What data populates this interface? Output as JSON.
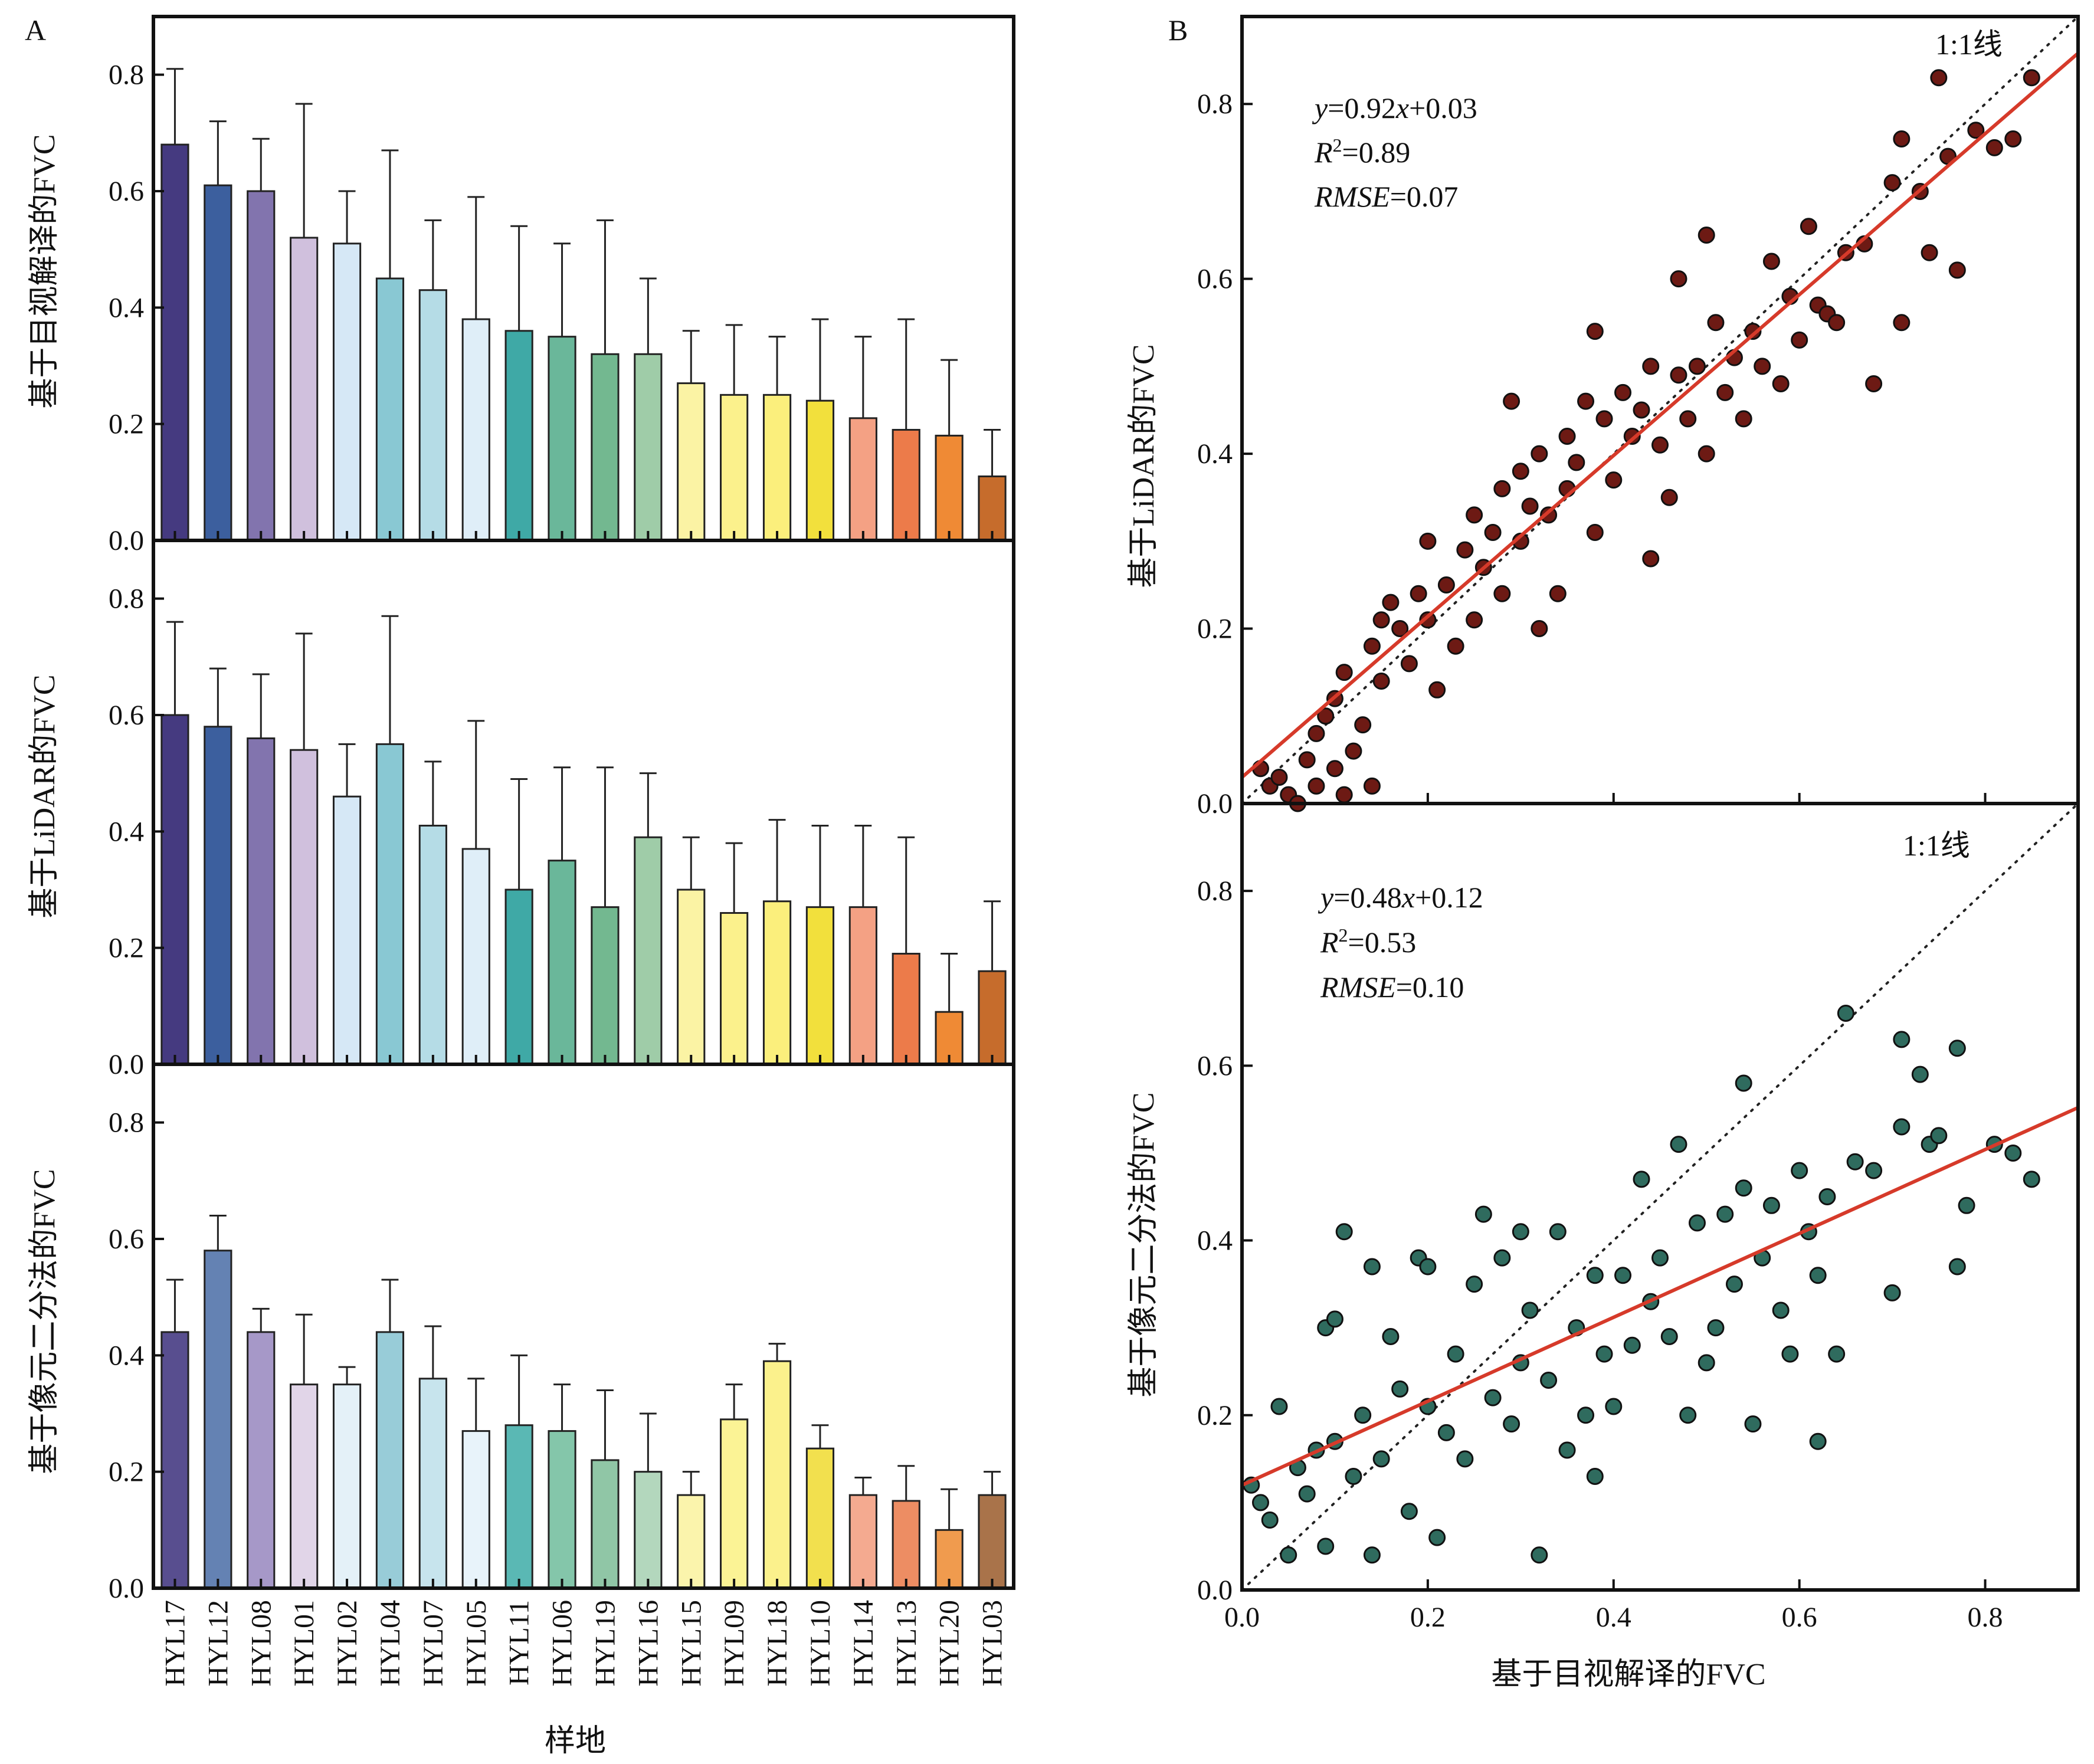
{
  "panel_a": {
    "letter": "A",
    "xlabel": "样地",
    "categories": [
      "HYL17",
      "HYL12",
      "HYL08",
      "HYL01",
      "HYL02",
      "HYL04",
      "HYL07",
      "HYL05",
      "HYL11",
      "HYL06",
      "HYL19",
      "HYL16",
      "HYL15",
      "HYL09",
      "HYL18",
      "HYL10",
      "HYL14",
      "HYL13",
      "HYL20",
      "HYL03"
    ]
  },
  "panel_b": {
    "letter": "B",
    "xlabel": "基于目视解译的FVC",
    "top": {
      "ylabel": "基于LiDAR的FVC",
      "one_to_one_label": "1:1线",
      "eq_y": "y",
      "eq_rest1": "=0.92",
      "eq_x": "x",
      "eq_rest2": "+0.03",
      "r2_sym": "R",
      "r2_sup": "2",
      "r2_val": "=0.89",
      "rmse_sym": "RMSE",
      "rmse_val": "=0.07"
    },
    "bottom": {
      "ylabel": "基于像元二分法的FVC",
      "one_to_one_label": "1:1线",
      "eq_y": "y",
      "eq_rest1": "=0.48",
      "eq_x": "x",
      "eq_rest2": "+0.12",
      "r2_sym": "R",
      "r2_sup": "2",
      "r2_val": "=0.53",
      "rmse_sym": "RMSE",
      "rmse_val": "=0.10"
    }
  },
  "colors": {
    "bars_a": [
      "#453a80",
      "#3c5f9e",
      "#8274ae",
      "#d0c0dd",
      "#d6e8f6",
      "#89c8d3",
      "#b5dce6",
      "#dfeef8",
      "#3fa9a6",
      "#6ab79a",
      "#73b890",
      "#9fcca8",
      "#fbf3a4",
      "#fbf18c",
      "#fbef7c",
      "#f2e03c",
      "#f4a184",
      "#ec7b4a",
      "#ef8a35",
      "#c66c2c"
    ],
    "bars_c": [
      "#584e8f",
      "#6482b3",
      "#a698c8",
      "#e1d5e8",
      "#e4f1f8",
      "#98ccd8",
      "#c7e4ed",
      "#e8f3fa",
      "#5ab8b4",
      "#84c6aa",
      "#90c6a6",
      "#b3d7bd",
      "#fbf4ac",
      "#fbf395",
      "#fbf18c",
      "#f2e04e",
      "#f4aa90",
      "#ed8d63",
      "#f09b4e",
      "#a9734a"
    ],
    "lidar_points": "#6d1a14",
    "dichotomy_points": "#2f6b5e",
    "fit_line": "#d63a2a"
  },
  "chart_data": [
    {
      "type": "bar",
      "title": "",
      "ylabel": "基于目视解译的FVC",
      "xlabel": "样地",
      "ylim": [
        0,
        0.9
      ],
      "yticks": [
        0.0,
        0.2,
        0.4,
        0.6,
        0.8
      ],
      "categories": [
        "HYL17",
        "HYL12",
        "HYL08",
        "HYL01",
        "HYL02",
        "HYL04",
        "HYL07",
        "HYL05",
        "HYL11",
        "HYL06",
        "HYL19",
        "HYL16",
        "HYL15",
        "HYL09",
        "HYL18",
        "HYL10",
        "HYL14",
        "HYL13",
        "HYL20",
        "HYL03"
      ],
      "values": [
        0.68,
        0.61,
        0.6,
        0.52,
        0.51,
        0.45,
        0.43,
        0.38,
        0.36,
        0.35,
        0.32,
        0.32,
        0.27,
        0.25,
        0.25,
        0.24,
        0.21,
        0.19,
        0.18,
        0.11
      ],
      "error_upper": [
        0.81,
        0.72,
        0.69,
        0.75,
        0.6,
        0.67,
        0.55,
        0.59,
        0.54,
        0.51,
        0.55,
        0.45,
        0.36,
        0.37,
        0.35,
        0.38,
        0.35,
        0.38,
        0.31,
        0.19
      ]
    },
    {
      "type": "bar",
      "title": "",
      "ylabel": "基于LiDAR的FVC",
      "ylim": [
        0,
        0.9
      ],
      "yticks": [
        0.0,
        0.2,
        0.4,
        0.6,
        0.8
      ],
      "categories": [
        "HYL17",
        "HYL12",
        "HYL08",
        "HYL01",
        "HYL02",
        "HYL04",
        "HYL07",
        "HYL05",
        "HYL11",
        "HYL06",
        "HYL19",
        "HYL16",
        "HYL15",
        "HYL09",
        "HYL18",
        "HYL10",
        "HYL14",
        "HYL13",
        "HYL20",
        "HYL03"
      ],
      "values": [
        0.6,
        0.58,
        0.56,
        0.54,
        0.46,
        0.55,
        0.41,
        0.37,
        0.3,
        0.35,
        0.27,
        0.39,
        0.3,
        0.26,
        0.28,
        0.27,
        0.27,
        0.19,
        0.09,
        0.16
      ],
      "error_upper": [
        0.76,
        0.68,
        0.67,
        0.74,
        0.55,
        0.77,
        0.52,
        0.59,
        0.49,
        0.51,
        0.51,
        0.5,
        0.39,
        0.38,
        0.42,
        0.41,
        0.41,
        0.39,
        0.19,
        0.28
      ]
    },
    {
      "type": "bar",
      "title": "",
      "ylabel": "基于像元二分法的FVC",
      "ylim": [
        0,
        0.9
      ],
      "yticks": [
        0.0,
        0.2,
        0.4,
        0.6,
        0.8
      ],
      "categories": [
        "HYL17",
        "HYL12",
        "HYL08",
        "HYL01",
        "HYL02",
        "HYL04",
        "HYL07",
        "HYL05",
        "HYL11",
        "HYL06",
        "HYL19",
        "HYL16",
        "HYL15",
        "HYL09",
        "HYL18",
        "HYL10",
        "HYL14",
        "HYL13",
        "HYL20",
        "HYL03"
      ],
      "values": [
        0.44,
        0.58,
        0.44,
        0.35,
        0.35,
        0.44,
        0.36,
        0.27,
        0.28,
        0.27,
        0.22,
        0.2,
        0.16,
        0.29,
        0.39,
        0.24,
        0.16,
        0.15,
        0.1,
        0.16
      ],
      "error_upper": [
        0.53,
        0.64,
        0.48,
        0.47,
        0.38,
        0.53,
        0.45,
        0.36,
        0.4,
        0.35,
        0.34,
        0.3,
        0.2,
        0.35,
        0.42,
        0.28,
        0.19,
        0.21,
        0.17,
        0.2
      ]
    },
    {
      "type": "scatter",
      "title": "",
      "xlabel": "基于目视解译的FVC",
      "ylabel": "基于LiDAR的FVC",
      "xlim": [
        0,
        0.9
      ],
      "ylim": [
        0,
        0.9
      ],
      "xticks": [
        0.0,
        0.2,
        0.4,
        0.6,
        0.8
      ],
      "yticks": [
        0.0,
        0.2,
        0.4,
        0.6,
        0.8
      ],
      "one_to_one": true,
      "fit": {
        "slope": 0.92,
        "intercept": 0.03,
        "r2": 0.89,
        "rmse": 0.07
      },
      "points": [
        [
          0.02,
          0.04
        ],
        [
          0.03,
          0.02
        ],
        [
          0.04,
          0.03
        ],
        [
          0.05,
          0.01
        ],
        [
          0.06,
          0.0
        ],
        [
          0.07,
          0.05
        ],
        [
          0.08,
          0.08
        ],
        [
          0.08,
          0.02
        ],
        [
          0.09,
          0.1
        ],
        [
          0.1,
          0.12
        ],
        [
          0.1,
          0.04
        ],
        [
          0.11,
          0.01
        ],
        [
          0.11,
          0.15
        ],
        [
          0.12,
          0.06
        ],
        [
          0.13,
          0.09
        ],
        [
          0.14,
          0.02
        ],
        [
          0.14,
          0.18
        ],
        [
          0.15,
          0.21
        ],
        [
          0.15,
          0.14
        ],
        [
          0.16,
          0.23
        ],
        [
          0.17,
          0.2
        ],
        [
          0.18,
          0.16
        ],
        [
          0.19,
          0.24
        ],
        [
          0.2,
          0.21
        ],
        [
          0.2,
          0.3
        ],
        [
          0.21,
          0.13
        ],
        [
          0.22,
          0.25
        ],
        [
          0.23,
          0.18
        ],
        [
          0.24,
          0.29
        ],
        [
          0.25,
          0.33
        ],
        [
          0.25,
          0.21
        ],
        [
          0.26,
          0.27
        ],
        [
          0.27,
          0.31
        ],
        [
          0.28,
          0.24
        ],
        [
          0.28,
          0.36
        ],
        [
          0.29,
          0.46
        ],
        [
          0.3,
          0.3
        ],
        [
          0.3,
          0.38
        ],
        [
          0.31,
          0.34
        ],
        [
          0.32,
          0.4
        ],
        [
          0.32,
          0.2
        ],
        [
          0.33,
          0.33
        ],
        [
          0.34,
          0.24
        ],
        [
          0.35,
          0.36
        ],
        [
          0.35,
          0.42
        ],
        [
          0.36,
          0.39
        ],
        [
          0.37,
          0.46
        ],
        [
          0.38,
          0.31
        ],
        [
          0.38,
          0.54
        ],
        [
          0.39,
          0.44
        ],
        [
          0.4,
          0.37
        ],
        [
          0.41,
          0.47
        ],
        [
          0.42,
          0.42
        ],
        [
          0.43,
          0.45
        ],
        [
          0.44,
          0.28
        ],
        [
          0.44,
          0.5
        ],
        [
          0.45,
          0.41
        ],
        [
          0.46,
          0.35
        ],
        [
          0.47,
          0.49
        ],
        [
          0.47,
          0.6
        ],
        [
          0.48,
          0.44
        ],
        [
          0.49,
          0.5
        ],
        [
          0.5,
          0.4
        ],
        [
          0.5,
          0.65
        ],
        [
          0.51,
          0.55
        ],
        [
          0.52,
          0.47
        ],
        [
          0.53,
          0.51
        ],
        [
          0.54,
          0.44
        ],
        [
          0.55,
          0.54
        ],
        [
          0.56,
          0.5
        ],
        [
          0.57,
          0.62
        ],
        [
          0.58,
          0.48
        ],
        [
          0.59,
          0.58
        ],
        [
          0.6,
          0.53
        ],
        [
          0.61,
          0.66
        ],
        [
          0.62,
          0.57
        ],
        [
          0.63,
          0.56
        ],
        [
          0.64,
          0.55
        ],
        [
          0.65,
          0.63
        ],
        [
          0.67,
          0.64
        ],
        [
          0.68,
          0.48
        ],
        [
          0.7,
          0.71
        ],
        [
          0.71,
          0.55
        ],
        [
          0.71,
          0.76
        ],
        [
          0.73,
          0.7
        ],
        [
          0.74,
          0.63
        ],
        [
          0.75,
          0.83
        ],
        [
          0.76,
          0.74
        ],
        [
          0.77,
          0.61
        ],
        [
          0.79,
          0.77
        ],
        [
          0.81,
          0.75
        ],
        [
          0.83,
          0.76
        ],
        [
          0.85,
          0.83
        ]
      ]
    },
    {
      "type": "scatter",
      "title": "",
      "xlabel": "基于目视解译的FVC",
      "ylabel": "基于像元二分法的FVC",
      "xlim": [
        0,
        0.9
      ],
      "ylim": [
        0,
        0.9
      ],
      "xticks": [
        0.0,
        0.2,
        0.4,
        0.6,
        0.8
      ],
      "yticks": [
        0.0,
        0.2,
        0.4,
        0.6,
        0.8
      ],
      "one_to_one": true,
      "fit": {
        "slope": 0.48,
        "intercept": 0.12,
        "r2": 0.53,
        "rmse": 0.1
      },
      "points": [
        [
          0.01,
          0.12
        ],
        [
          0.02,
          0.1
        ],
        [
          0.03,
          0.08
        ],
        [
          0.04,
          0.21
        ],
        [
          0.05,
          0.04
        ],
        [
          0.06,
          0.14
        ],
        [
          0.07,
          0.11
        ],
        [
          0.08,
          0.16
        ],
        [
          0.09,
          0.3
        ],
        [
          0.09,
          0.05
        ],
        [
          0.1,
          0.31
        ],
        [
          0.1,
          0.17
        ],
        [
          0.11,
          0.41
        ],
        [
          0.12,
          0.13
        ],
        [
          0.13,
          0.2
        ],
        [
          0.14,
          0.37
        ],
        [
          0.14,
          0.04
        ],
        [
          0.15,
          0.15
        ],
        [
          0.16,
          0.29
        ],
        [
          0.17,
          0.23
        ],
        [
          0.18,
          0.09
        ],
        [
          0.19,
          0.38
        ],
        [
          0.2,
          0.21
        ],
        [
          0.2,
          0.37
        ],
        [
          0.21,
          0.06
        ],
        [
          0.22,
          0.18
        ],
        [
          0.23,
          0.27
        ],
        [
          0.24,
          0.15
        ],
        [
          0.25,
          0.35
        ],
        [
          0.26,
          0.43
        ],
        [
          0.27,
          0.22
        ],
        [
          0.28,
          0.38
        ],
        [
          0.29,
          0.19
        ],
        [
          0.3,
          0.26
        ],
        [
          0.3,
          0.41
        ],
        [
          0.31,
          0.32
        ],
        [
          0.32,
          0.04
        ],
        [
          0.33,
          0.24
        ],
        [
          0.34,
          0.41
        ],
        [
          0.35,
          0.16
        ],
        [
          0.36,
          0.3
        ],
        [
          0.37,
          0.2
        ],
        [
          0.38,
          0.13
        ],
        [
          0.38,
          0.36
        ],
        [
          0.39,
          0.27
        ],
        [
          0.4,
          0.21
        ],
        [
          0.41,
          0.36
        ],
        [
          0.42,
          0.28
        ],
        [
          0.43,
          0.47
        ],
        [
          0.44,
          0.33
        ],
        [
          0.45,
          0.38
        ],
        [
          0.46,
          0.29
        ],
        [
          0.47,
          0.51
        ],
        [
          0.48,
          0.2
        ],
        [
          0.49,
          0.42
        ],
        [
          0.5,
          0.26
        ],
        [
          0.51,
          0.3
        ],
        [
          0.52,
          0.43
        ],
        [
          0.53,
          0.35
        ],
        [
          0.54,
          0.46
        ],
        [
          0.54,
          0.58
        ],
        [
          0.55,
          0.19
        ],
        [
          0.56,
          0.38
        ],
        [
          0.57,
          0.44
        ],
        [
          0.58,
          0.32
        ],
        [
          0.59,
          0.27
        ],
        [
          0.6,
          0.48
        ],
        [
          0.61,
          0.41
        ],
        [
          0.62,
          0.17
        ],
        [
          0.62,
          0.36
        ],
        [
          0.63,
          0.45
        ],
        [
          0.64,
          0.27
        ],
        [
          0.65,
          0.66
        ],
        [
          0.66,
          0.49
        ],
        [
          0.68,
          0.48
        ],
        [
          0.7,
          0.34
        ],
        [
          0.71,
          0.53
        ],
        [
          0.71,
          0.63
        ],
        [
          0.73,
          0.59
        ],
        [
          0.74,
          0.51
        ],
        [
          0.75,
          0.52
        ],
        [
          0.77,
          0.37
        ],
        [
          0.77,
          0.62
        ],
        [
          0.78,
          0.44
        ],
        [
          0.81,
          0.51
        ],
        [
          0.83,
          0.5
        ],
        [
          0.85,
          0.47
        ]
      ]
    }
  ]
}
